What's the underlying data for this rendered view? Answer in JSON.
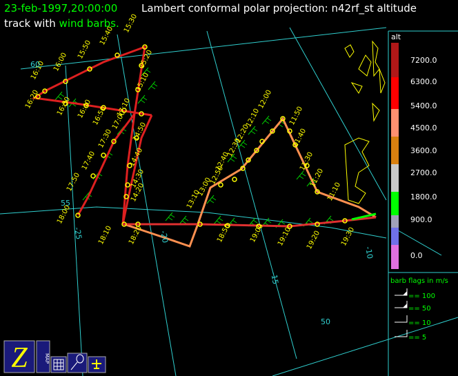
{
  "header": {
    "date": "23-feb-1997,20:00:00",
    "title": "Lambert conformal polar projection:  n42rf_st altitude",
    "line2_prefix": "track with",
    "line2_highlight": "wind barbs."
  },
  "grid_labels": [
    "60",
    "55",
    "-25",
    "-20",
    "-15",
    "-10",
    "50"
  ],
  "track_labels": [
    "11:10",
    "11:20",
    "11:30",
    "11:40",
    "11:50",
    "12:00",
    "12:10",
    "12:20",
    "12:30",
    "12:40",
    "12:50",
    "13:00",
    "13:10",
    "14:20",
    "14:30",
    "14:40",
    "14:50",
    "15:10",
    "15:20",
    "15:30",
    "15:40",
    "15:50",
    "16:00",
    "16:10",
    "16:20",
    "16:30",
    "16:40",
    "16:50",
    "17:00",
    "17:10",
    "17:30",
    "17:40",
    "17:50",
    "18:00",
    "18:10",
    "18:20",
    "18:50",
    "19:00",
    "19:10",
    "19:20",
    "19:30"
  ],
  "colorbar": {
    "title": "alt",
    "labels": [
      "7200.0",
      "6300.0",
      "5400.0",
      "4500.0",
      "3600.0",
      "2700.0",
      "1800.0",
      "900.0",
      "0.0"
    ]
  },
  "barb_legend": {
    "title": "barb flags in m/s",
    "items": [
      "== 100",
      "== 50",
      "== 10",
      "== 5"
    ]
  },
  "buttons": {
    "logo": "Z",
    "map": "MAP"
  }
}
